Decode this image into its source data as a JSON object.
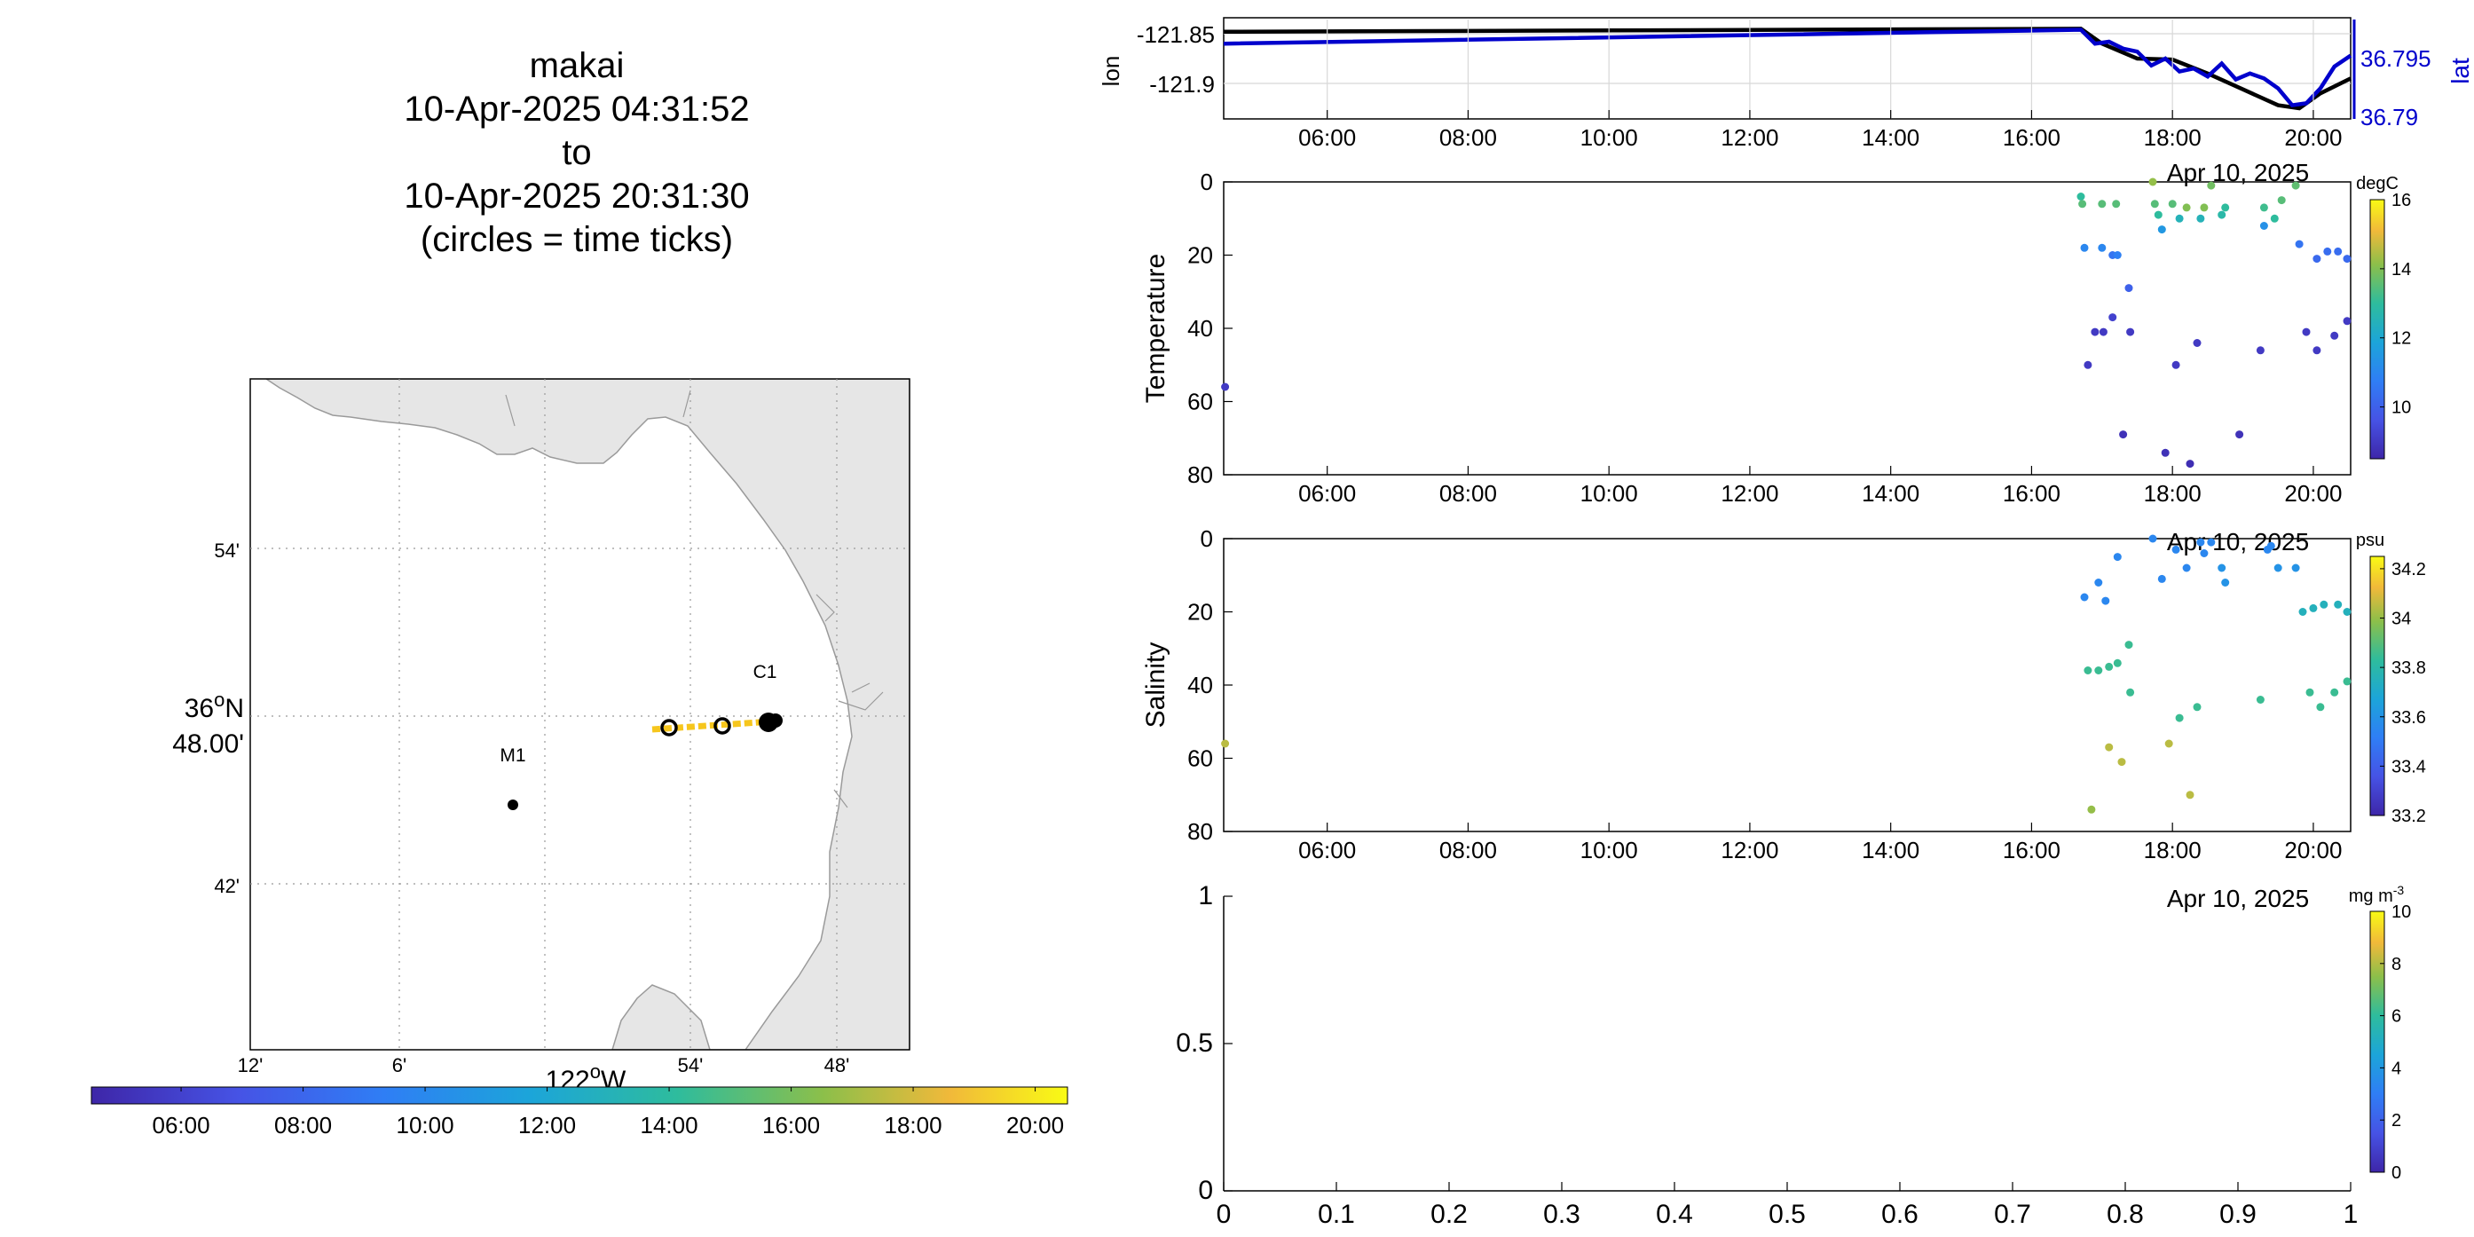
{
  "title": {
    "lines": [
      "makai",
      "10-Apr-2025 04:31:52",
      "to",
      "10-Apr-2025 20:31:30",
      "(circles = time ticks)"
    ]
  },
  "map": {
    "lat_labels": [
      "54'",
      "42'"
    ],
    "lat_center_label_deg": "36",
    "lat_center_label_deg_symbol": "o",
    "lat_center_label_hem": "N",
    "lat_center_label_min": "48.00'",
    "lon_labels": [
      "12'",
      "6'",
      "54'",
      "48'"
    ],
    "lon_center_label_deg": "122",
    "lon_center_label_deg_symbol": "o",
    "lon_center_label_hem": "W",
    "stations": [
      {
        "name": "C1",
        "lon": -121.85,
        "lat": 36.797
      },
      {
        "name": "M1",
        "lon": -122.03,
        "lat": 36.75
      }
    ],
    "colorbar_ticks": [
      "06:00",
      "08:00",
      "10:00",
      "12:00",
      "14:00",
      "16:00",
      "18:00",
      "20:00"
    ],
    "colors": {
      "land": "#e6e6e6",
      "coast": "#9a9a9a",
      "track": "#f6c61d",
      "marker": "#000000"
    }
  },
  "chart_data": [
    {
      "type": "line",
      "panel": "lon-lat",
      "ylabel": "lon",
      "ylabel_right": "lat",
      "x_ticks": [
        "06:00",
        "08:00",
        "10:00",
        "12:00",
        "14:00",
        "16:00",
        "18:00",
        "20:00"
      ],
      "x_range_hours": [
        4.53,
        20.53
      ],
      "x_date_label": "Apr 10, 2025",
      "y_ticks_left": [
        "-121.85",
        "-121.9"
      ],
      "y_ticks_right": [
        "36.795",
        "36.79"
      ],
      "grid": true,
      "series": [
        {
          "name": "lon",
          "color": "#000000",
          "x": [
            4.53,
            16.7,
            17.0,
            17.5,
            18.0,
            18.5,
            19.0,
            19.5,
            19.8,
            20.1,
            20.53
          ],
          "y": [
            -121.848,
            -121.845,
            -121.86,
            -121.875,
            -121.876,
            -121.89,
            -121.906,
            -121.922,
            -121.925,
            -121.91,
            -121.895
          ]
        },
        {
          "name": "lat",
          "color": "#0000cc",
          "x": [
            4.53,
            16.7,
            16.9,
            17.1,
            17.3,
            17.5,
            17.7,
            17.9,
            18.1,
            18.3,
            18.5,
            18.7,
            18.9,
            19.1,
            19.3,
            19.5,
            19.7,
            19.9,
            20.1,
            20.3,
            20.53
          ],
          "y": [
            -121.86,
            -121.846,
            -121.86,
            -121.858,
            -121.865,
            -121.868,
            -121.882,
            -121.875,
            -121.888,
            -121.885,
            -121.893,
            -121.88,
            -121.896,
            -121.89,
            -121.895,
            -121.905,
            -121.922,
            -121.92,
            -121.905,
            -121.883,
            -121.872
          ]
        }
      ]
    },
    {
      "type": "scatter",
      "panel": "temperature",
      "ylabel": "Temperature",
      "colorbar_label": "degC",
      "colorbar_ticks": [
        "16",
        "14",
        "12",
        "10"
      ],
      "colorbar_range": [
        8.5,
        16
      ],
      "x_ticks": [
        "06:00",
        "08:00",
        "10:00",
        "12:00",
        "14:00",
        "16:00",
        "18:00",
        "20:00"
      ],
      "x_date_label": "Apr 10, 2025",
      "y_ticks": [
        "0",
        "20",
        "40",
        "60",
        "80"
      ],
      "ylim": [
        0,
        80
      ],
      "points": [
        {
          "t": 4.55,
          "d": 56,
          "v": 9
        },
        {
          "t": 16.7,
          "d": 4,
          "v": 13
        },
        {
          "t": 16.72,
          "d": 6,
          "v": 13.5
        },
        {
          "t": 16.75,
          "d": 18,
          "v": 11
        },
        {
          "t": 16.8,
          "d": 50,
          "v": 9
        },
        {
          "t": 16.9,
          "d": 41,
          "v": 9
        },
        {
          "t": 17.0,
          "d": 6,
          "v": 13.5
        },
        {
          "t": 17.0,
          "d": 18,
          "v": 11
        },
        {
          "t": 17.02,
          "d": 41,
          "v": 9
        },
        {
          "t": 17.15,
          "d": 37,
          "v": 9.2
        },
        {
          "t": 17.15,
          "d": 20,
          "v": 10.5
        },
        {
          "t": 17.2,
          "d": 6,
          "v": 13.5
        },
        {
          "t": 17.22,
          "d": 20,
          "v": 10.8
        },
        {
          "t": 17.3,
          "d": 69,
          "v": 8.8
        },
        {
          "t": 17.38,
          "d": 29,
          "v": 10
        },
        {
          "t": 17.4,
          "d": 41,
          "v": 9
        },
        {
          "t": 17.72,
          "d": 0,
          "v": 14.2
        },
        {
          "t": 17.75,
          "d": 6,
          "v": 13.5
        },
        {
          "t": 17.8,
          "d": 9,
          "v": 13
        },
        {
          "t": 17.85,
          "d": 13,
          "v": 11.5
        },
        {
          "t": 17.9,
          "d": 74,
          "v": 8.8
        },
        {
          "t": 18.0,
          "d": 6,
          "v": 13.5
        },
        {
          "t": 18.05,
          "d": 50,
          "v": 9
        },
        {
          "t": 18.1,
          "d": 10,
          "v": 12.5
        },
        {
          "t": 18.2,
          "d": 7,
          "v": 14
        },
        {
          "t": 18.25,
          "d": 77,
          "v": 8.7
        },
        {
          "t": 18.35,
          "d": 44,
          "v": 9
        },
        {
          "t": 18.4,
          "d": 10,
          "v": 12.5
        },
        {
          "t": 18.45,
          "d": 7,
          "v": 14
        },
        {
          "t": 18.55,
          "d": 1,
          "v": 13.8
        },
        {
          "t": 18.7,
          "d": 9,
          "v": 12.8
        },
        {
          "t": 18.75,
          "d": 7,
          "v": 13
        },
        {
          "t": 18.95,
          "d": 69,
          "v": 8.8
        },
        {
          "t": 19.25,
          "d": 46,
          "v": 9
        },
        {
          "t": 19.3,
          "d": 7,
          "v": 13.2
        },
        {
          "t": 19.3,
          "d": 12,
          "v": 11.3
        },
        {
          "t": 19.45,
          "d": 10,
          "v": 13
        },
        {
          "t": 19.55,
          "d": 5,
          "v": 13.5
        },
        {
          "t": 19.75,
          "d": 1,
          "v": 13.6
        },
        {
          "t": 19.8,
          "d": 17,
          "v": 10.5
        },
        {
          "t": 19.9,
          "d": 41,
          "v": 9
        },
        {
          "t": 20.05,
          "d": 46,
          "v": 9
        },
        {
          "t": 20.05,
          "d": 21,
          "v": 10.2
        },
        {
          "t": 20.2,
          "d": 19,
          "v": 10.3
        },
        {
          "t": 20.3,
          "d": 42,
          "v": 9
        },
        {
          "t": 20.35,
          "d": 19,
          "v": 10.3
        },
        {
          "t": 20.48,
          "d": 38,
          "v": 9
        },
        {
          "t": 20.48,
          "d": 21,
          "v": 10.2
        }
      ]
    },
    {
      "type": "scatter",
      "panel": "salinity",
      "ylabel": "Salinity",
      "colorbar_label": "psu",
      "colorbar_ticks": [
        "34.2",
        "34",
        "33.8",
        "33.6",
        "33.4",
        "33.2"
      ],
      "colorbar_range": [
        33.2,
        34.25
      ],
      "x_ticks": [
        "06:00",
        "08:00",
        "10:00",
        "12:00",
        "14:00",
        "16:00",
        "18:00",
        "20:00"
      ],
      "x_date_label": "Apr 10, 2025",
      "y_ticks": [
        "0",
        "20",
        "40",
        "60",
        "80"
      ],
      "ylim": [
        0,
        80
      ],
      "points": [
        {
          "t": 4.55,
          "d": 56,
          "v": 34.05
        },
        {
          "t": 16.75,
          "d": 16,
          "v": 33.55
        },
        {
          "t": 16.8,
          "d": 36,
          "v": 33.85
        },
        {
          "t": 16.85,
          "d": 74,
          "v": 34.0
        },
        {
          "t": 16.95,
          "d": 12,
          "v": 33.55
        },
        {
          "t": 16.95,
          "d": 36,
          "v": 33.85
        },
        {
          "t": 17.05,
          "d": 17,
          "v": 33.55
        },
        {
          "t": 17.1,
          "d": 35,
          "v": 33.85
        },
        {
          "t": 17.1,
          "d": 57,
          "v": 34.05
        },
        {
          "t": 17.22,
          "d": 5,
          "v": 33.55
        },
        {
          "t": 17.22,
          "d": 34,
          "v": 33.85
        },
        {
          "t": 17.28,
          "d": 61,
          "v": 34.05
        },
        {
          "t": 17.38,
          "d": 29,
          "v": 33.85
        },
        {
          "t": 17.4,
          "d": 42,
          "v": 33.85
        },
        {
          "t": 17.72,
          "d": 0,
          "v": 33.55
        },
        {
          "t": 17.85,
          "d": 11,
          "v": 33.55
        },
        {
          "t": 17.95,
          "d": 56,
          "v": 34.05
        },
        {
          "t": 18.05,
          "d": 3,
          "v": 33.55
        },
        {
          "t": 18.1,
          "d": 49,
          "v": 33.85
        },
        {
          "t": 18.2,
          "d": 8,
          "v": 33.55
        },
        {
          "t": 18.25,
          "d": 70,
          "v": 34.05
        },
        {
          "t": 18.35,
          "d": 46,
          "v": 33.85
        },
        {
          "t": 18.4,
          "d": 1,
          "v": 33.55
        },
        {
          "t": 18.45,
          "d": 4,
          "v": 33.55
        },
        {
          "t": 18.55,
          "d": 1,
          "v": 33.55
        },
        {
          "t": 18.7,
          "d": 8,
          "v": 33.6
        },
        {
          "t": 18.75,
          "d": 12,
          "v": 33.6
        },
        {
          "t": 19.25,
          "d": 44,
          "v": 33.85
        },
        {
          "t": 19.35,
          "d": 3,
          "v": 33.55
        },
        {
          "t": 19.4,
          "d": 2,
          "v": 33.55
        },
        {
          "t": 19.5,
          "d": 8,
          "v": 33.6
        },
        {
          "t": 19.75,
          "d": 8,
          "v": 33.6
        },
        {
          "t": 19.85,
          "d": 20,
          "v": 33.75
        },
        {
          "t": 19.95,
          "d": 42,
          "v": 33.85
        },
        {
          "t": 20.0,
          "d": 19,
          "v": 33.75
        },
        {
          "t": 20.1,
          "d": 46,
          "v": 33.85
        },
        {
          "t": 20.15,
          "d": 18,
          "v": 33.75
        },
        {
          "t": 20.3,
          "d": 42,
          "v": 33.85
        },
        {
          "t": 20.35,
          "d": 18,
          "v": 33.75
        },
        {
          "t": 20.48,
          "d": 39,
          "v": 33.85
        },
        {
          "t": 20.48,
          "d": 20,
          "v": 33.75
        }
      ]
    },
    {
      "type": "scatter",
      "panel": "empty",
      "colorbar_label": "mg m",
      "colorbar_label_sup": "-3",
      "colorbar_ticks": [
        "10",
        "8",
        "6",
        "4",
        "2",
        "0"
      ],
      "colorbar_range": [
        0,
        10
      ],
      "x_ticks": [
        "0",
        "0.1",
        "0.2",
        "0.3",
        "0.4",
        "0.5",
        "0.6",
        "0.7",
        "0.8",
        "0.9",
        "1"
      ],
      "y_ticks": [
        "1",
        "0.5",
        "0"
      ],
      "xlim": [
        0,
        1
      ],
      "ylim": [
        0,
        1
      ],
      "points": []
    }
  ]
}
